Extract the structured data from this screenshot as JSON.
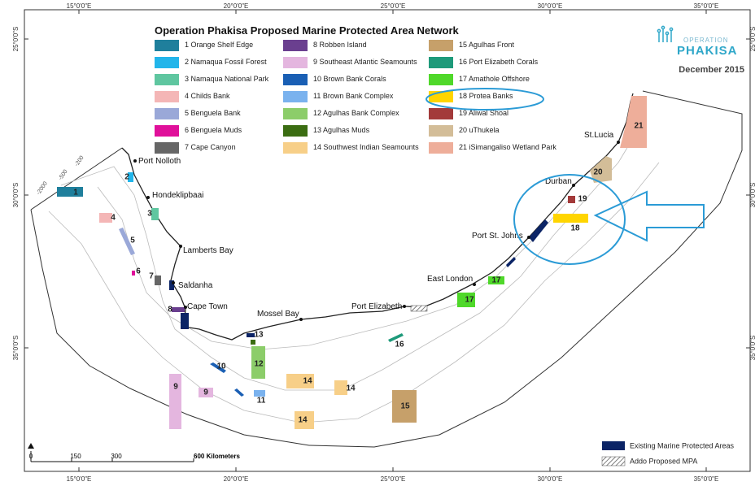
{
  "title": "Operation Phakisa Proposed Marine Protected Area Network",
  "logo": {
    "line1": "OPERATION",
    "line2": "PHAKISA"
  },
  "date": "December 2015",
  "graticule": {
    "lon": [
      "15°0'0\"E",
      "20°0'0\"E",
      "25°0'0\"E",
      "30°0'0\"E",
      "35°0'0\"E"
    ],
    "lat": [
      "25°0'0\"S",
      "30°0'0\"S",
      "35°0'0\"S"
    ]
  },
  "mpas": [
    {
      "num": "1",
      "name": "Orange Shelf Edge",
      "color": "#1f7f9c"
    },
    {
      "num": "2",
      "name": "Namaqua Fossil Forest",
      "color": "#22b5ea"
    },
    {
      "num": "3",
      "name": "Namaqua National Park",
      "color": "#5fc6a0"
    },
    {
      "num": "4",
      "name": "Childs Bank",
      "color": "#f4b6b6"
    },
    {
      "num": "5",
      "name": "Benguela Bank",
      "color": "#9aa8d8"
    },
    {
      "num": "6",
      "name": "Benguela Muds",
      "color": "#e0109a"
    },
    {
      "num": "7",
      "name": "Cape Canyon",
      "color": "#666666"
    },
    {
      "num": "8",
      "name": "Robben Island",
      "color": "#6a3f8f"
    },
    {
      "num": "9",
      "name": "Southeast Atlantic Seamounts",
      "color": "#e4b6df"
    },
    {
      "num": "10",
      "name": "Brown Bank Corals",
      "color": "#1a5fb4"
    },
    {
      "num": "11",
      "name": "Brown Bank Complex",
      "color": "#7ab2ee"
    },
    {
      "num": "12",
      "name": "Agulhas Bank Complex",
      "color": "#8ccd6a"
    },
    {
      "num": "13",
      "name": "Agulhas Muds",
      "color": "#3b6d12"
    },
    {
      "num": "14",
      "name": "Southwest Indian Seamounts",
      "color": "#f7cf88"
    },
    {
      "num": "15",
      "name": "Agulhas Front",
      "color": "#c6a06a"
    },
    {
      "num": "16",
      "name": "Port Elizabeth Corals",
      "color": "#1e9a7a"
    },
    {
      "num": "17",
      "name": "Amathole Offshore",
      "color": "#4fd82a"
    },
    {
      "num": "18",
      "name": "Protea Banks",
      "color": "#ffd500"
    },
    {
      "num": "19",
      "name": "Aliwal Shoal",
      "color": "#a33a3a"
    },
    {
      "num": "20",
      "name": "uThukela",
      "color": "#d3bd98"
    },
    {
      "num": "21",
      "name": "iSimangaliso Wetland Park",
      "color": "#eeae9a"
    }
  ],
  "places": [
    "Port Nolloth",
    "Hondeklipbaai",
    "Lamberts Bay",
    "Saldanha",
    "Cape Town",
    "Mossel Bay",
    "Port Elizabeth",
    "East London",
    "Port St. Johns",
    "Durban",
    "St.Lucia"
  ],
  "depths": [
    "-200",
    "-500",
    "-2000"
  ],
  "scale": {
    "ticks": [
      "0",
      "150",
      "300",
      "600"
    ],
    "unit": "Kilometers"
  },
  "key": {
    "existing": "Existing Marine Protected Areas",
    "proposed": "Addo Proposed MPA"
  }
}
